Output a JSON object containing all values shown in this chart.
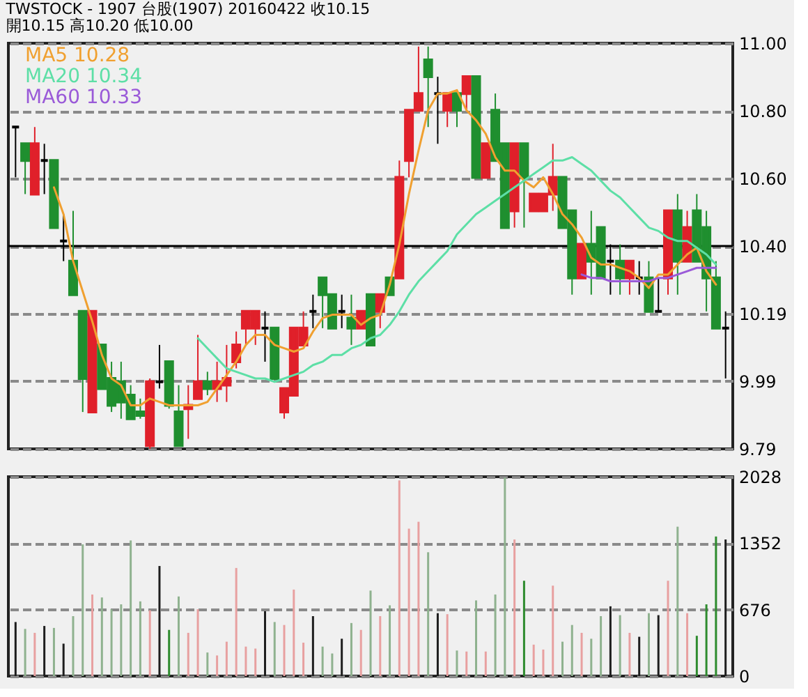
{
  "chart_data": [
    {
      "type": "candlestick",
      "title": "TWSTOCK - 1907 台股(1907) 20160422 收10.15",
      "subtitle": "開10.15 高10.20 低10.00",
      "categories": [
        null,
        null,
        null,
        null,
        null,
        null,
        null,
        null,
        null,
        null,
        null,
        null,
        null,
        null,
        null,
        null,
        null,
        null,
        null,
        null,
        null,
        null,
        null,
        null,
        null,
        null,
        null,
        null,
        null,
        null,
        null,
        null,
        null,
        null,
        null,
        null,
        null,
        null,
        null,
        null,
        null,
        null,
        null,
        null,
        null,
        null,
        null,
        null,
        null,
        null,
        null,
        null,
        null,
        null,
        null,
        null,
        null,
        null,
        null,
        null,
        null,
        null,
        null,
        null,
        null,
        null,
        null,
        null,
        null,
        null,
        null,
        null,
        null,
        null,
        null
      ],
      "ohlc": [
        [
          10.75,
          10.75,
          10.6,
          10.75
        ],
        [
          10.7,
          10.7,
          10.55,
          10.65
        ],
        [
          10.55,
          10.75,
          10.55,
          10.7
        ],
        [
          10.65,
          10.7,
          10.55,
          10.65
        ],
        [
          10.65,
          10.65,
          10.45,
          10.45
        ],
        [
          10.41,
          10.49,
          10.35,
          10.41
        ],
        [
          10.35,
          10.5,
          10.25,
          10.25
        ],
        [
          10.2,
          10.2,
          9.9,
          10.0
        ],
        [
          9.9,
          10.2,
          9.9,
          10.2
        ],
        [
          10.1,
          10.1,
          9.97,
          9.97
        ],
        [
          10.0,
          10.05,
          9.9,
          9.92
        ],
        [
          9.99,
          10.05,
          9.88,
          9.93
        ],
        [
          9.95,
          9.98,
          9.88,
          9.88
        ],
        [
          9.9,
          9.94,
          9.88,
          9.89
        ],
        [
          9.8,
          10.0,
          9.79,
          9.99
        ],
        [
          9.99,
          10.1,
          9.97,
          9.99
        ],
        [
          10.05,
          10.05,
          9.91,
          9.92
        ],
        [
          9.9,
          9.98,
          9.8,
          9.8
        ],
        [
          9.91,
          9.98,
          9.82,
          9.92
        ],
        [
          9.94,
          10.13,
          9.94,
          9.99
        ],
        [
          9.99,
          10.02,
          9.95,
          9.97
        ],
        [
          9.97,
          10.05,
          9.93,
          9.99
        ],
        [
          9.98,
          10.1,
          9.93,
          10.0
        ],
        [
          10.05,
          10.14,
          10.03,
          10.1
        ],
        [
          10.15,
          10.2,
          10.1,
          10.2
        ],
        [
          10.15,
          10.2,
          10.1,
          10.2
        ],
        [
          10.15,
          10.2,
          10.05,
          10.15
        ],
        [
          10.15,
          10.15,
          10.0,
          10.0
        ],
        [
          9.9,
          9.97,
          9.88,
          9.97
        ],
        [
          9.95,
          10.15,
          9.95,
          10.15
        ],
        [
          10.1,
          10.2,
          10.1,
          10.15
        ],
        [
          10.2,
          10.25,
          10.15,
          10.2
        ],
        [
          10.3,
          10.3,
          10.15,
          10.25
        ],
        [
          10.25,
          10.25,
          10.15,
          10.15
        ],
        [
          10.2,
          10.25,
          10.15,
          10.2
        ],
        [
          10.18,
          10.25,
          10.1,
          10.15
        ],
        [
          10.15,
          10.2,
          10.15,
          10.2
        ],
        [
          10.25,
          10.25,
          10.1,
          10.1
        ],
        [
          10.2,
          10.25,
          10.15,
          10.25
        ],
        [
          10.3,
          10.3,
          10.25,
          10.25
        ],
        [
          10.3,
          10.65,
          10.3,
          10.6
        ],
        [
          10.65,
          10.8,
          10.6,
          10.8
        ],
        [
          10.8,
          10.99,
          10.8,
          10.85
        ],
        [
          10.95,
          10.99,
          10.75,
          10.9
        ],
        [
          10.85,
          10.9,
          10.7,
          10.85
        ],
        [
          10.8,
          10.85,
          10.75,
          10.85
        ],
        [
          10.85,
          10.85,
          10.75,
          10.8
        ],
        [
          10.85,
          10.9,
          10.8,
          10.9
        ],
        [
          10.9,
          10.9,
          10.6,
          10.6
        ],
        [
          10.6,
          10.7,
          10.6,
          10.7
        ],
        [
          10.8,
          10.85,
          10.65,
          10.65
        ],
        [
          10.7,
          10.7,
          10.45,
          10.45
        ],
        [
          10.5,
          10.7,
          10.45,
          10.7
        ],
        [
          10.7,
          10.7,
          10.45,
          10.6
        ],
        [
          10.5,
          10.55,
          10.5,
          10.55
        ],
        [
          10.5,
          10.55,
          10.5,
          10.55
        ],
        [
          10.55,
          10.7,
          10.5,
          10.6
        ],
        [
          10.6,
          10.6,
          10.45,
          10.45
        ],
        [
          10.5,
          10.5,
          10.25,
          10.3
        ],
        [
          10.3,
          10.4,
          10.3,
          10.4
        ],
        [
          10.4,
          10.5,
          10.25,
          10.35
        ],
        [
          10.45,
          10.45,
          10.3,
          10.3
        ],
        [
          10.35,
          10.4,
          10.25,
          10.35
        ],
        [
          10.35,
          10.4,
          10.25,
          10.3
        ],
        [
          10.3,
          10.35,
          10.25,
          10.35
        ],
        [
          10.3,
          10.35,
          10.25,
          10.3
        ],
        [
          10.3,
          10.35,
          10.2,
          10.2
        ],
        [
          10.2,
          10.3,
          10.2,
          10.2
        ],
        [
          10.3,
          10.5,
          10.25,
          10.5
        ],
        [
          10.5,
          10.55,
          10.25,
          10.35
        ],
        [
          10.35,
          10.5,
          10.35,
          10.45
        ],
        [
          10.5,
          10.55,
          10.35,
          10.35
        ],
        [
          10.45,
          10.5,
          10.2,
          10.3
        ],
        [
          10.3,
          10.35,
          10.15,
          10.15
        ],
        [
          10.15,
          10.2,
          10.0,
          10.15
        ]
      ],
      "colors": [
        "#000000",
        "#1f8f2f",
        "#e0202a",
        "#000000",
        "#1f8f2f",
        "#000000",
        "#1f8f2f",
        "#1f8f2f",
        "#e0202a",
        "#1f8f2f",
        "#1f8f2f",
        "#1f8f2f",
        "#1f8f2f",
        "#1f8f2f",
        "#e0202a",
        "#000000",
        "#1f8f2f",
        "#1f8f2f",
        "#e0202a",
        "#e0202a",
        "#1f8f2f",
        "#e0202a",
        "#e0202a",
        "#e0202a",
        "#e0202a",
        "#e0202a",
        "#000000",
        "#1f8f2f",
        "#e0202a",
        "#e0202a",
        "#e0202a",
        "#000000",
        "#1f8f2f",
        "#1f8f2f",
        "#000000",
        "#1f8f2f",
        "#e0202a",
        "#1f8f2f",
        "#e0202a",
        "#1f8f2f",
        "#e0202a",
        "#e0202a",
        "#e0202a",
        "#1f8f2f",
        "#000000",
        "#e0202a",
        "#1f8f2f",
        "#e0202a",
        "#1f8f2f",
        "#e0202a",
        "#1f8f2f",
        "#1f8f2f",
        "#e0202a",
        "#1f8f2f",
        "#e0202a",
        "#e0202a",
        "#e0202a",
        "#1f8f2f",
        "#1f8f2f",
        "#e0202a",
        "#1f8f2f",
        "#1f8f2f",
        "#000000",
        "#1f8f2f",
        "#e0202a",
        "#000000",
        "#1f8f2f",
        "#000000",
        "#e0202a",
        "#1f8f2f",
        "#e0202a",
        "#1f8f2f",
        "#1f8f2f",
        "#1f8f2f",
        "#000000"
      ],
      "series": [
        {
          "name": "MA5 10.28",
          "type": "line",
          "color": "#f0a030",
          "values": [
            null,
            null,
            null,
            null,
            10.57,
            10.49,
            10.35,
            10.26,
            10.17,
            10.07,
            10.0,
            9.98,
            9.92,
            9.92,
            9.94,
            9.93,
            9.92,
            9.92,
            9.92,
            9.92,
            9.93,
            9.97,
            10.01,
            10.05,
            10.1,
            10.13,
            10.13,
            10.1,
            10.09,
            10.08,
            10.09,
            10.14,
            10.18,
            10.19,
            10.19,
            10.19,
            10.16,
            10.18,
            10.19,
            10.28,
            10.4,
            10.55,
            10.68,
            10.8,
            10.85,
            10.85,
            10.86,
            10.8,
            10.77,
            10.73,
            10.66,
            10.62,
            10.62,
            10.59,
            10.57,
            10.6,
            10.55,
            10.49,
            10.46,
            10.42,
            10.36,
            10.34,
            10.34,
            10.33,
            10.32,
            10.3,
            10.27,
            10.31,
            10.31,
            10.34,
            10.37,
            10.39,
            10.32,
            10.28,
            null
          ]
        },
        {
          "name": "MA20 10.34",
          "type": "line",
          "color": "#5ddfa6",
          "values": [
            null,
            null,
            null,
            null,
            null,
            null,
            null,
            null,
            null,
            null,
            null,
            null,
            null,
            null,
            null,
            null,
            null,
            null,
            null,
            10.12,
            10.09,
            10.06,
            10.03,
            10.02,
            10.01,
            10.0,
            10.0,
            9.99,
            10.0,
            10.01,
            10.02,
            10.04,
            10.05,
            10.07,
            10.07,
            10.09,
            10.1,
            10.12,
            10.13,
            10.16,
            10.2,
            10.25,
            10.29,
            10.32,
            10.35,
            10.38,
            10.43,
            10.46,
            10.49,
            10.51,
            10.53,
            10.55,
            10.57,
            10.59,
            10.61,
            10.63,
            10.65,
            10.65,
            10.66,
            10.64,
            10.62,
            10.59,
            10.56,
            10.54,
            10.51,
            10.48,
            10.45,
            10.44,
            10.42,
            10.41,
            10.41,
            10.39,
            10.37,
            10.34,
            null
          ]
        },
        {
          "name": "MA60 10.33",
          "type": "line",
          "color": "#9a5ad8",
          "values": [
            null,
            null,
            null,
            null,
            null,
            null,
            null,
            null,
            null,
            null,
            null,
            null,
            null,
            null,
            null,
            null,
            null,
            null,
            null,
            null,
            null,
            null,
            null,
            null,
            null,
            null,
            null,
            null,
            null,
            null,
            null,
            null,
            null,
            null,
            null,
            null,
            null,
            null,
            null,
            null,
            null,
            null,
            null,
            null,
            null,
            null,
            null,
            null,
            null,
            null,
            null,
            null,
            null,
            null,
            null,
            null,
            null,
            null,
            null,
            10.31,
            10.3,
            10.3,
            10.29,
            10.29,
            10.29,
            10.29,
            10.29,
            10.3,
            10.3,
            10.31,
            10.32,
            10.33,
            10.33,
            10.33,
            null
          ]
        }
      ],
      "ylim": [
        9.79,
        11.0
      ],
      "yticks": [
        {
          "value": 9.79,
          "label": "9.79"
        },
        {
          "value": 9.992,
          "label": "9.99"
        },
        {
          "value": 10.193,
          "label": "10.19"
        },
        {
          "value": 10.395,
          "label": "10.40"
        },
        {
          "value": 10.597,
          "label": "10.60"
        },
        {
          "value": 10.798,
          "label": "10.80"
        },
        {
          "value": 11.0,
          "label": "11.00"
        }
      ],
      "ref_lines": [
        {
          "axis": "y",
          "value": 10.395,
          "color": "#000000"
        }
      ],
      "grid": "y",
      "legend": "top left",
      "tick_labels": "y"
    },
    {
      "type": "bar",
      "categories": [
        null,
        null,
        null,
        null,
        null,
        null,
        null,
        null,
        null,
        null,
        null,
        null,
        null,
        null,
        null,
        null,
        null,
        null,
        null,
        null,
        null,
        null,
        null,
        null,
        null,
        null,
        null,
        null,
        null,
        null,
        null,
        null,
        null,
        null,
        null,
        null,
        null,
        null,
        null,
        null,
        null,
        null,
        null,
        null,
        null,
        null,
        null,
        null,
        null,
        null,
        null,
        null,
        null,
        null,
        null,
        null,
        null,
        null,
        null,
        null,
        null,
        null,
        null,
        null,
        null,
        null,
        null,
        null,
        null,
        null,
        null,
        null,
        null,
        null,
        null
      ],
      "values": [
        550,
        480,
        440,
        510,
        490,
        330,
        610,
        1340,
        830,
        800,
        680,
        730,
        1380,
        760,
        670,
        1120,
        470,
        810,
        440,
        680,
        240,
        210,
        350,
        1100,
        300,
        280,
        660,
        550,
        520,
        880,
        340,
        610,
        300,
        230,
        380,
        540,
        470,
        870,
        610,
        720,
        1990,
        1500,
        1570,
        1260,
        640,
        630,
        260,
        250,
        770,
        250,
        830,
        2020,
        1390,
        970,
        320,
        270,
        920,
        350,
        520,
        440,
        380,
        610,
        710,
        620,
        440,
        400,
        640,
        620,
        970,
        1520,
        640,
        410,
        730,
        1420,
        1390
      ],
      "colors": [
        "#1e1e1e",
        "#8fb28f",
        "#e8a0a0",
        "#1e1e1e",
        "#8fb28f",
        "#1e1e1e",
        "#8fb28f",
        "#8fb28f",
        "#e8a0a0",
        "#8fb28f",
        "#8fb28f",
        "#8fb28f",
        "#8fb28f",
        "#8fb28f",
        "#e8a0a0",
        "#1e1e1e",
        "#2e8b2e",
        "#8fb28f",
        "#e8a0a0",
        "#e8a0a0",
        "#8fb28f",
        "#e8a0a0",
        "#e8a0a0",
        "#e8a0a0",
        "#e8a0a0",
        "#e8a0a0",
        "#1e1e1e",
        "#8fb28f",
        "#e8a0a0",
        "#e8a0a0",
        "#e8a0a0",
        "#1e1e1e",
        "#8fb28f",
        "#8fb28f",
        "#1e1e1e",
        "#8fb28f",
        "#e8a0a0",
        "#8fb28f",
        "#e8a0a0",
        "#8fb28f",
        "#e8a0a0",
        "#e8a0a0",
        "#e8a0a0",
        "#8fb28f",
        "#1e1e1e",
        "#e8a0a0",
        "#8fb28f",
        "#e8a0a0",
        "#8fb28f",
        "#e8a0a0",
        "#8fb28f",
        "#8fb28f",
        "#e8a0a0",
        "#2e8b2e",
        "#e8a0a0",
        "#e8a0a0",
        "#e8a0a0",
        "#8fb28f",
        "#8fb28f",
        "#e8a0a0",
        "#8fb28f",
        "#8fb28f",
        "#1e1e1e",
        "#8fb28f",
        "#e8a0a0",
        "#1e1e1e",
        "#8fb28f",
        "#1e1e1e",
        "#e8a0a0",
        "#8fb28f",
        "#e8a0a0",
        "#2e8b2e",
        "#2e8b2e",
        "#2e8b2e",
        "#1e1e1e"
      ],
      "ylim": [
        0,
        2028
      ],
      "yticks": [
        0,
        676,
        1352,
        2028
      ],
      "grid": "y",
      "tick_labels": "y"
    }
  ]
}
